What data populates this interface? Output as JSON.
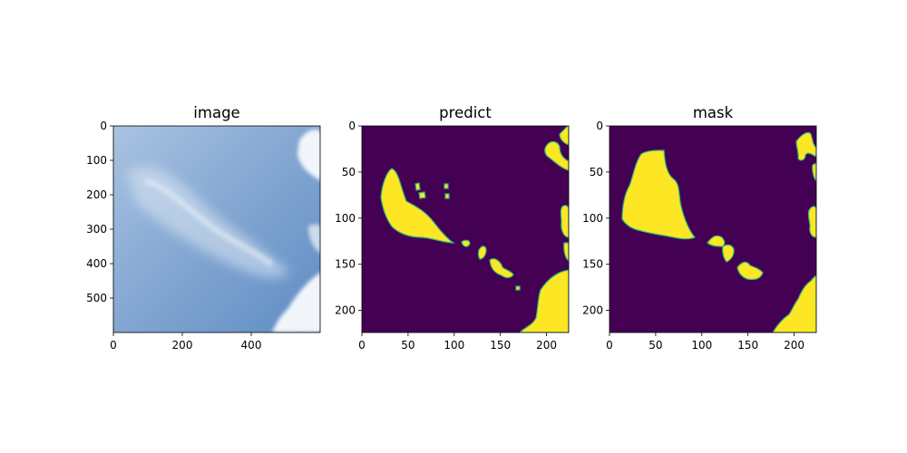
{
  "chart_data": [
    {
      "type": "image",
      "title": "image",
      "xticks": [
        0,
        200,
        400
      ],
      "yticks": [
        0,
        100,
        200,
        300,
        400,
        500
      ],
      "xlim": [
        0,
        600
      ],
      "ylim": [
        600,
        0
      ],
      "colors": {
        "sky_light": "#a9c3e2",
        "sky_mid": "#7fa6d3",
        "sky_dark": "#5b89c1",
        "cloud": "#eef3fa"
      }
    },
    {
      "type": "heatmap",
      "title": "predict",
      "xticks": [
        0,
        50,
        100,
        150,
        200
      ],
      "yticks": [
        0,
        50,
        100,
        150,
        200
      ],
      "xlim": [
        0,
        224
      ],
      "ylim": [
        224,
        0
      ],
      "colors": {
        "background": "#440154",
        "foreground": "#fde725",
        "edge": "#35b779"
      }
    },
    {
      "type": "heatmap",
      "title": "mask",
      "xticks": [
        0,
        50,
        100,
        150,
        200
      ],
      "yticks": [
        0,
        50,
        100,
        150,
        200
      ],
      "xlim": [
        0,
        224
      ],
      "ylim": [
        224,
        0
      ],
      "colors": {
        "background": "#440154",
        "foreground": "#fde725",
        "edge": "#35b779"
      }
    }
  ]
}
